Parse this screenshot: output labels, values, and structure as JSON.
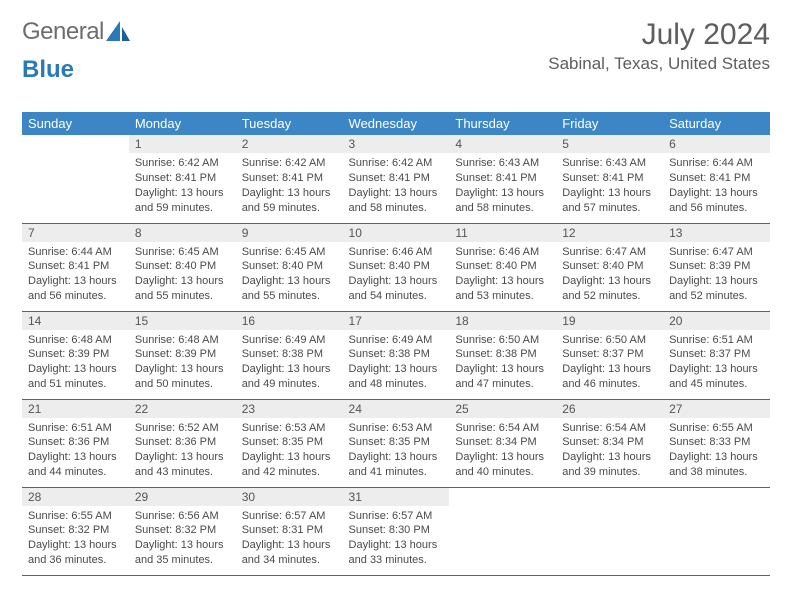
{
  "brand": {
    "part1": "General",
    "part2": "Blue"
  },
  "title": "July 2024",
  "location": "Sabinal, Texas, United States",
  "colors": {
    "header_bg": "#3d86c6",
    "header_text": "#ffffff",
    "daynum_bg": "#ededed",
    "border": "#3d6a94",
    "body_text": "#4a4a4a",
    "title_text": "#5e5e5e"
  },
  "weekdays": [
    "Sunday",
    "Monday",
    "Tuesday",
    "Wednesday",
    "Thursday",
    "Friday",
    "Saturday"
  ],
  "layout": {
    "first_weekday_index": 1,
    "days_in_month": 31
  },
  "days": [
    {
      "n": 1,
      "sunrise": "6:42 AM",
      "sunset": "8:41 PM",
      "daylight": "13 hours and 59 minutes."
    },
    {
      "n": 2,
      "sunrise": "6:42 AM",
      "sunset": "8:41 PM",
      "daylight": "13 hours and 59 minutes."
    },
    {
      "n": 3,
      "sunrise": "6:42 AM",
      "sunset": "8:41 PM",
      "daylight": "13 hours and 58 minutes."
    },
    {
      "n": 4,
      "sunrise": "6:43 AM",
      "sunset": "8:41 PM",
      "daylight": "13 hours and 58 minutes."
    },
    {
      "n": 5,
      "sunrise": "6:43 AM",
      "sunset": "8:41 PM",
      "daylight": "13 hours and 57 minutes."
    },
    {
      "n": 6,
      "sunrise": "6:44 AM",
      "sunset": "8:41 PM",
      "daylight": "13 hours and 56 minutes."
    },
    {
      "n": 7,
      "sunrise": "6:44 AM",
      "sunset": "8:41 PM",
      "daylight": "13 hours and 56 minutes."
    },
    {
      "n": 8,
      "sunrise": "6:45 AM",
      "sunset": "8:40 PM",
      "daylight": "13 hours and 55 minutes."
    },
    {
      "n": 9,
      "sunrise": "6:45 AM",
      "sunset": "8:40 PM",
      "daylight": "13 hours and 55 minutes."
    },
    {
      "n": 10,
      "sunrise": "6:46 AM",
      "sunset": "8:40 PM",
      "daylight": "13 hours and 54 minutes."
    },
    {
      "n": 11,
      "sunrise": "6:46 AM",
      "sunset": "8:40 PM",
      "daylight": "13 hours and 53 minutes."
    },
    {
      "n": 12,
      "sunrise": "6:47 AM",
      "sunset": "8:40 PM",
      "daylight": "13 hours and 52 minutes."
    },
    {
      "n": 13,
      "sunrise": "6:47 AM",
      "sunset": "8:39 PM",
      "daylight": "13 hours and 52 minutes."
    },
    {
      "n": 14,
      "sunrise": "6:48 AM",
      "sunset": "8:39 PM",
      "daylight": "13 hours and 51 minutes."
    },
    {
      "n": 15,
      "sunrise": "6:48 AM",
      "sunset": "8:39 PM",
      "daylight": "13 hours and 50 minutes."
    },
    {
      "n": 16,
      "sunrise": "6:49 AM",
      "sunset": "8:38 PM",
      "daylight": "13 hours and 49 minutes."
    },
    {
      "n": 17,
      "sunrise": "6:49 AM",
      "sunset": "8:38 PM",
      "daylight": "13 hours and 48 minutes."
    },
    {
      "n": 18,
      "sunrise": "6:50 AM",
      "sunset": "8:38 PM",
      "daylight": "13 hours and 47 minutes."
    },
    {
      "n": 19,
      "sunrise": "6:50 AM",
      "sunset": "8:37 PM",
      "daylight": "13 hours and 46 minutes."
    },
    {
      "n": 20,
      "sunrise": "6:51 AM",
      "sunset": "8:37 PM",
      "daylight": "13 hours and 45 minutes."
    },
    {
      "n": 21,
      "sunrise": "6:51 AM",
      "sunset": "8:36 PM",
      "daylight": "13 hours and 44 minutes."
    },
    {
      "n": 22,
      "sunrise": "6:52 AM",
      "sunset": "8:36 PM",
      "daylight": "13 hours and 43 minutes."
    },
    {
      "n": 23,
      "sunrise": "6:53 AM",
      "sunset": "8:35 PM",
      "daylight": "13 hours and 42 minutes."
    },
    {
      "n": 24,
      "sunrise": "6:53 AM",
      "sunset": "8:35 PM",
      "daylight": "13 hours and 41 minutes."
    },
    {
      "n": 25,
      "sunrise": "6:54 AM",
      "sunset": "8:34 PM",
      "daylight": "13 hours and 40 minutes."
    },
    {
      "n": 26,
      "sunrise": "6:54 AM",
      "sunset": "8:34 PM",
      "daylight": "13 hours and 39 minutes."
    },
    {
      "n": 27,
      "sunrise": "6:55 AM",
      "sunset": "8:33 PM",
      "daylight": "13 hours and 38 minutes."
    },
    {
      "n": 28,
      "sunrise": "6:55 AM",
      "sunset": "8:32 PM",
      "daylight": "13 hours and 36 minutes."
    },
    {
      "n": 29,
      "sunrise": "6:56 AM",
      "sunset": "8:32 PM",
      "daylight": "13 hours and 35 minutes."
    },
    {
      "n": 30,
      "sunrise": "6:57 AM",
      "sunset": "8:31 PM",
      "daylight": "13 hours and 34 minutes."
    },
    {
      "n": 31,
      "sunrise": "6:57 AM",
      "sunset": "8:30 PM",
      "daylight": "13 hours and 33 minutes."
    }
  ]
}
